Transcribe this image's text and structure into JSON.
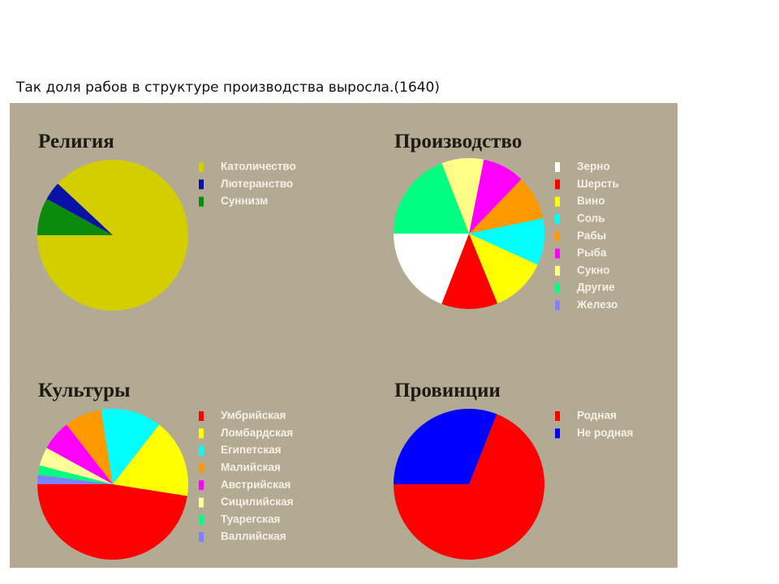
{
  "caption": "Так доля рабов в структуре производства выросла.(1640)",
  "chart_data": [
    {
      "type": "pie",
      "title": "Религия",
      "categories": [
        "Католичество",
        "Лютеранство",
        "Суннизм"
      ],
      "values": [
        88,
        4,
        8
      ],
      "colors": [
        "#d3ce00",
        "#0a12a6",
        "#0c8a0c"
      ]
    },
    {
      "type": "pie",
      "title": "Производство",
      "categories": [
        "Зерно",
        "Шерсть",
        "Вино",
        "Соль",
        "Рабы",
        "Рыба",
        "Сукно",
        "Другие",
        "Железо"
      ],
      "values": [
        19,
        12,
        12,
        10,
        9.5,
        9,
        9,
        19,
        0
      ],
      "colors": [
        "#ffffff",
        "#ff0000",
        "#ffff00",
        "#00ffff",
        "#ff9900",
        "#ff00ff",
        "#ffff88",
        "#00ff80",
        "#8080ff"
      ]
    },
    {
      "type": "pie",
      "title": "Культуры",
      "categories": [
        "Умбрийская",
        "Ломбардская",
        "Египетская",
        "Малийская",
        "Австрийская",
        "Сицилийская",
        "Туарегская",
        "Валлийская"
      ],
      "values": [
        47.5,
        17,
        13,
        8,
        6.5,
        4,
        2,
        2
      ],
      "colors": [
        "#ff0000",
        "#ffff00",
        "#00ffff",
        "#ff9900",
        "#ff00ff",
        "#ffff99",
        "#00ff80",
        "#8080ff"
      ]
    },
    {
      "type": "pie",
      "title": "Провинции",
      "categories": [
        "Родная",
        "Не родная"
      ],
      "values": [
        69,
        31
      ],
      "colors": [
        "#ff0000",
        "#0000ff"
      ]
    }
  ]
}
